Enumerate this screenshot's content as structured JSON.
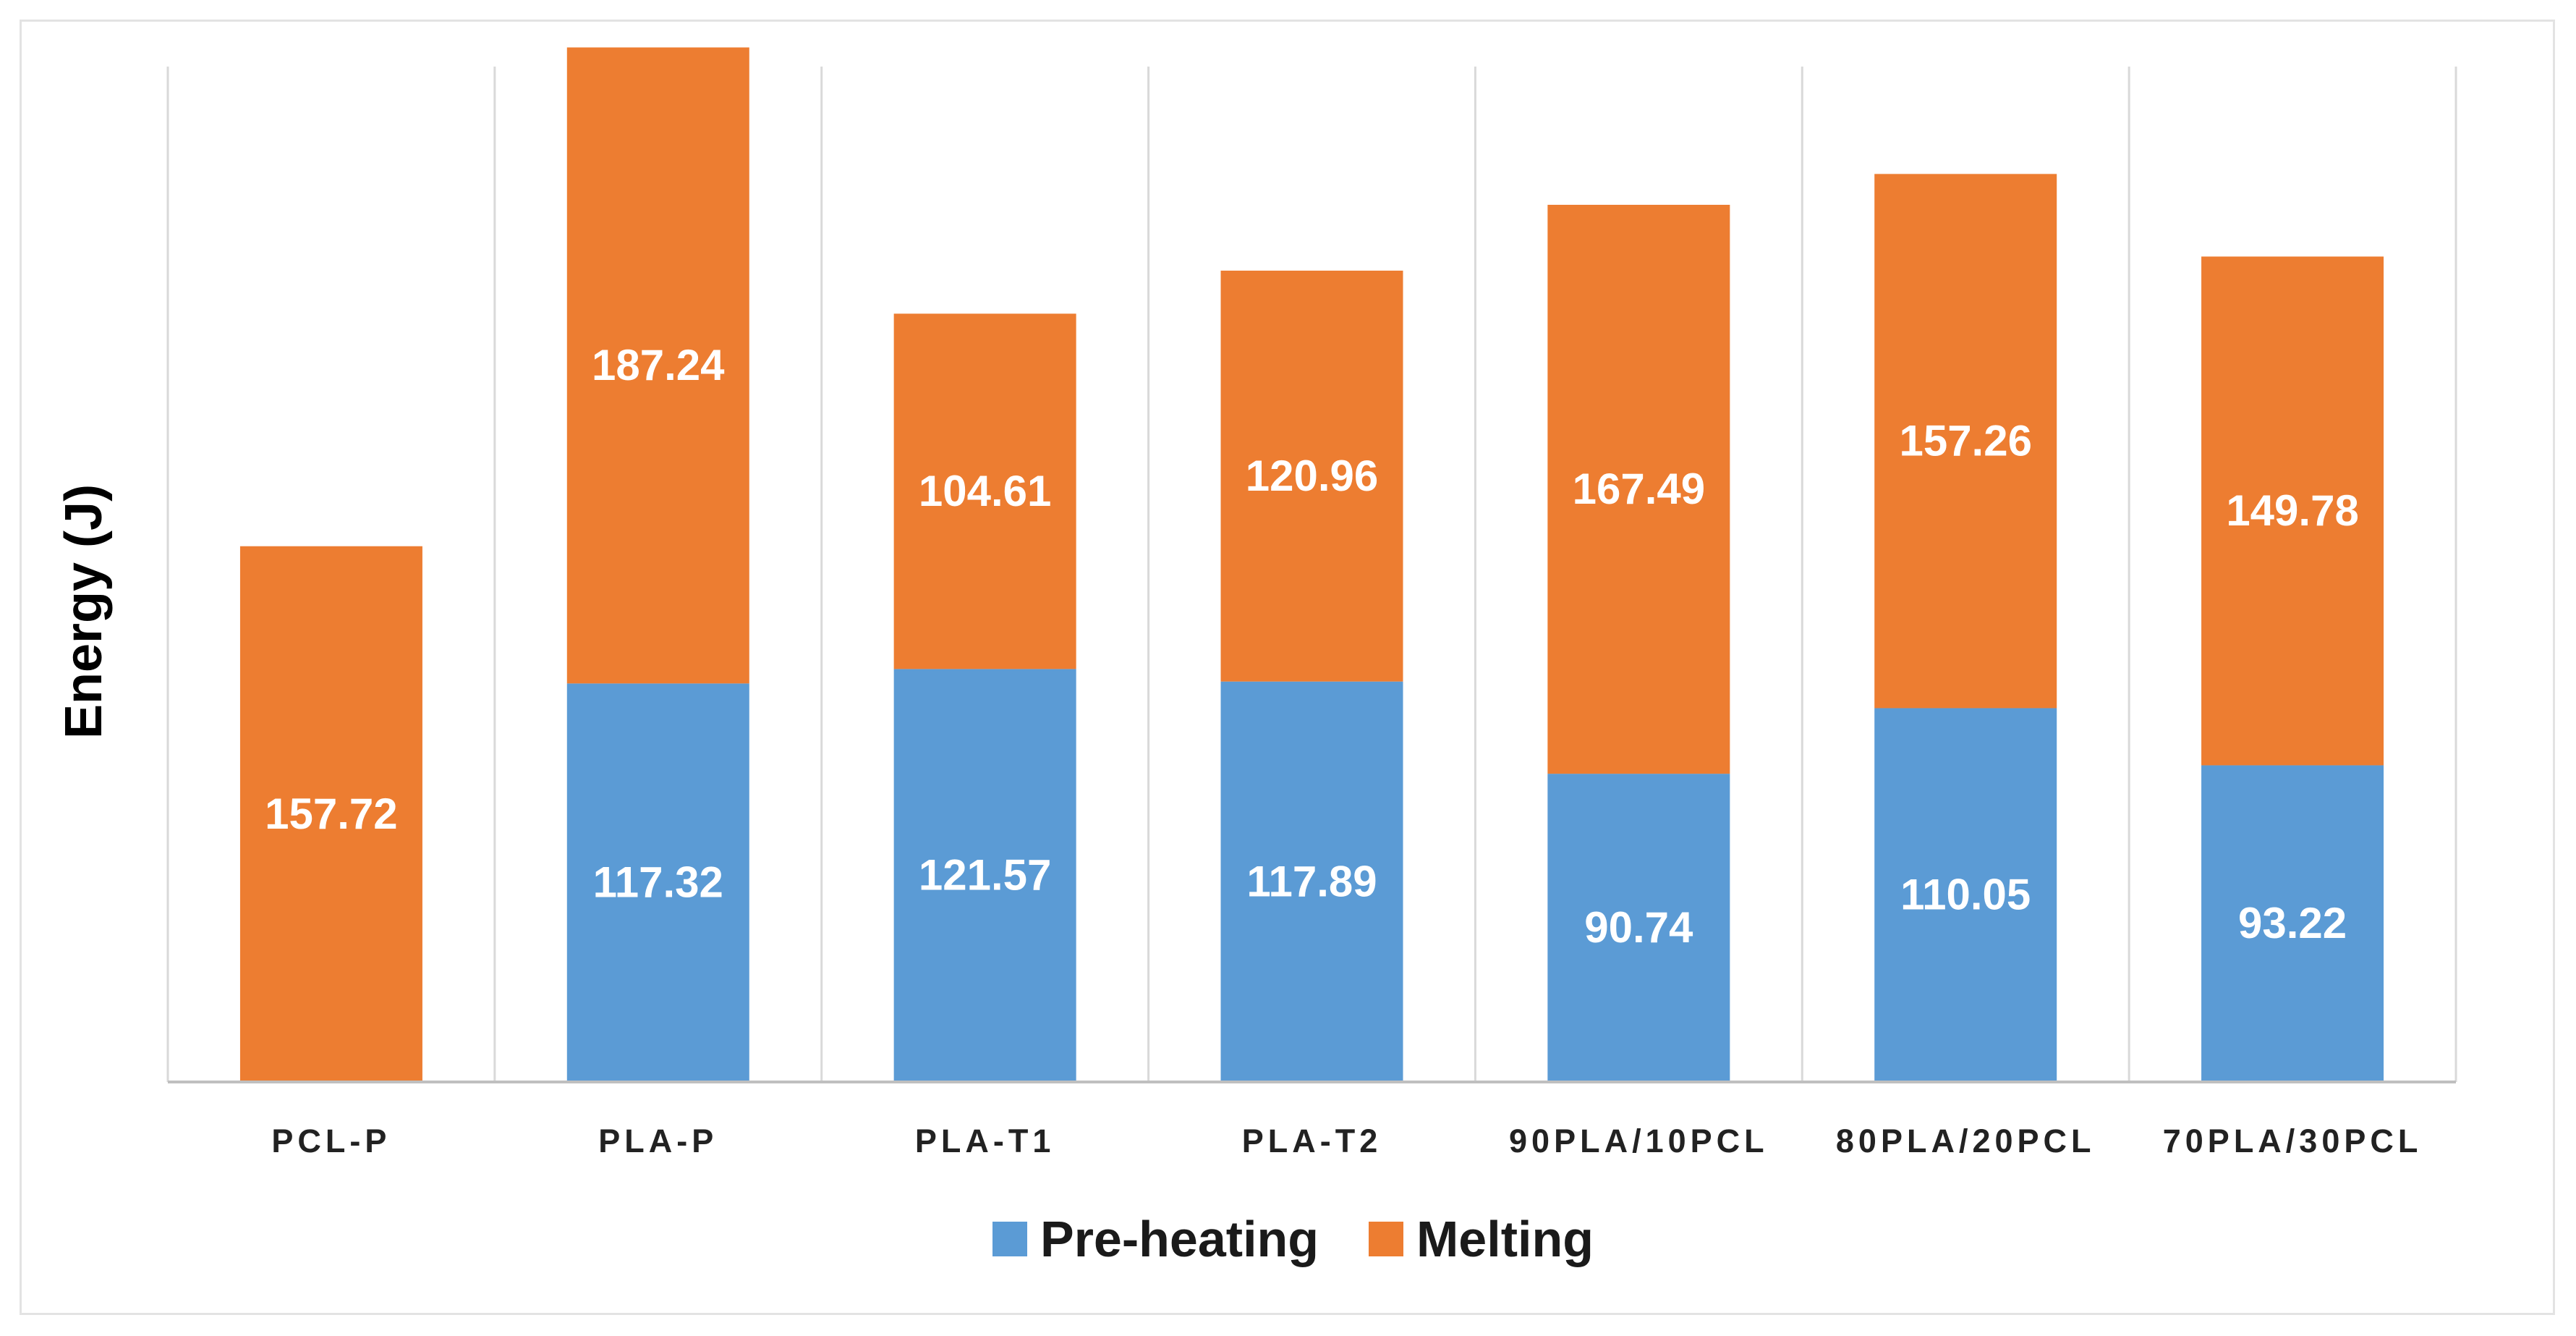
{
  "chart_data": {
    "type": "bar",
    "stacked": true,
    "title": "",
    "xlabel": "",
    "ylabel": "Energy  (J)",
    "ylim": [
      0,
      310
    ],
    "grid": "vertical separators",
    "legend_position": "bottom-center",
    "categories": [
      "PCL-P",
      "PLA-P",
      "PLA-T1",
      "PLA-T2",
      "90PLA/10PCL",
      "80PLA/20PCL",
      "70PLA/30PCL"
    ],
    "series": [
      {
        "name": "Pre-heating",
        "color": "#5b9bd5",
        "values": [
          0,
          117.32,
          121.57,
          117.89,
          90.74,
          110.05,
          93.22
        ],
        "labels": [
          "",
          "117.32",
          "121.57",
          "117.89",
          "90.74",
          "110.05",
          "93.22"
        ]
      },
      {
        "name": "Melting",
        "color": "#ed7d31",
        "values": [
          157.72,
          187.24,
          104.61,
          120.96,
          167.49,
          157.26,
          149.78
        ],
        "labels": [
          "157.72",
          "187.24",
          "104.61",
          "120.96",
          "167.49",
          "157.26",
          "149.78"
        ]
      }
    ]
  },
  "colors": {
    "background": "#ffffff",
    "border": "#e3e3e3",
    "gridline": "#d9d9d9",
    "axis": "#bfbfbf"
  }
}
